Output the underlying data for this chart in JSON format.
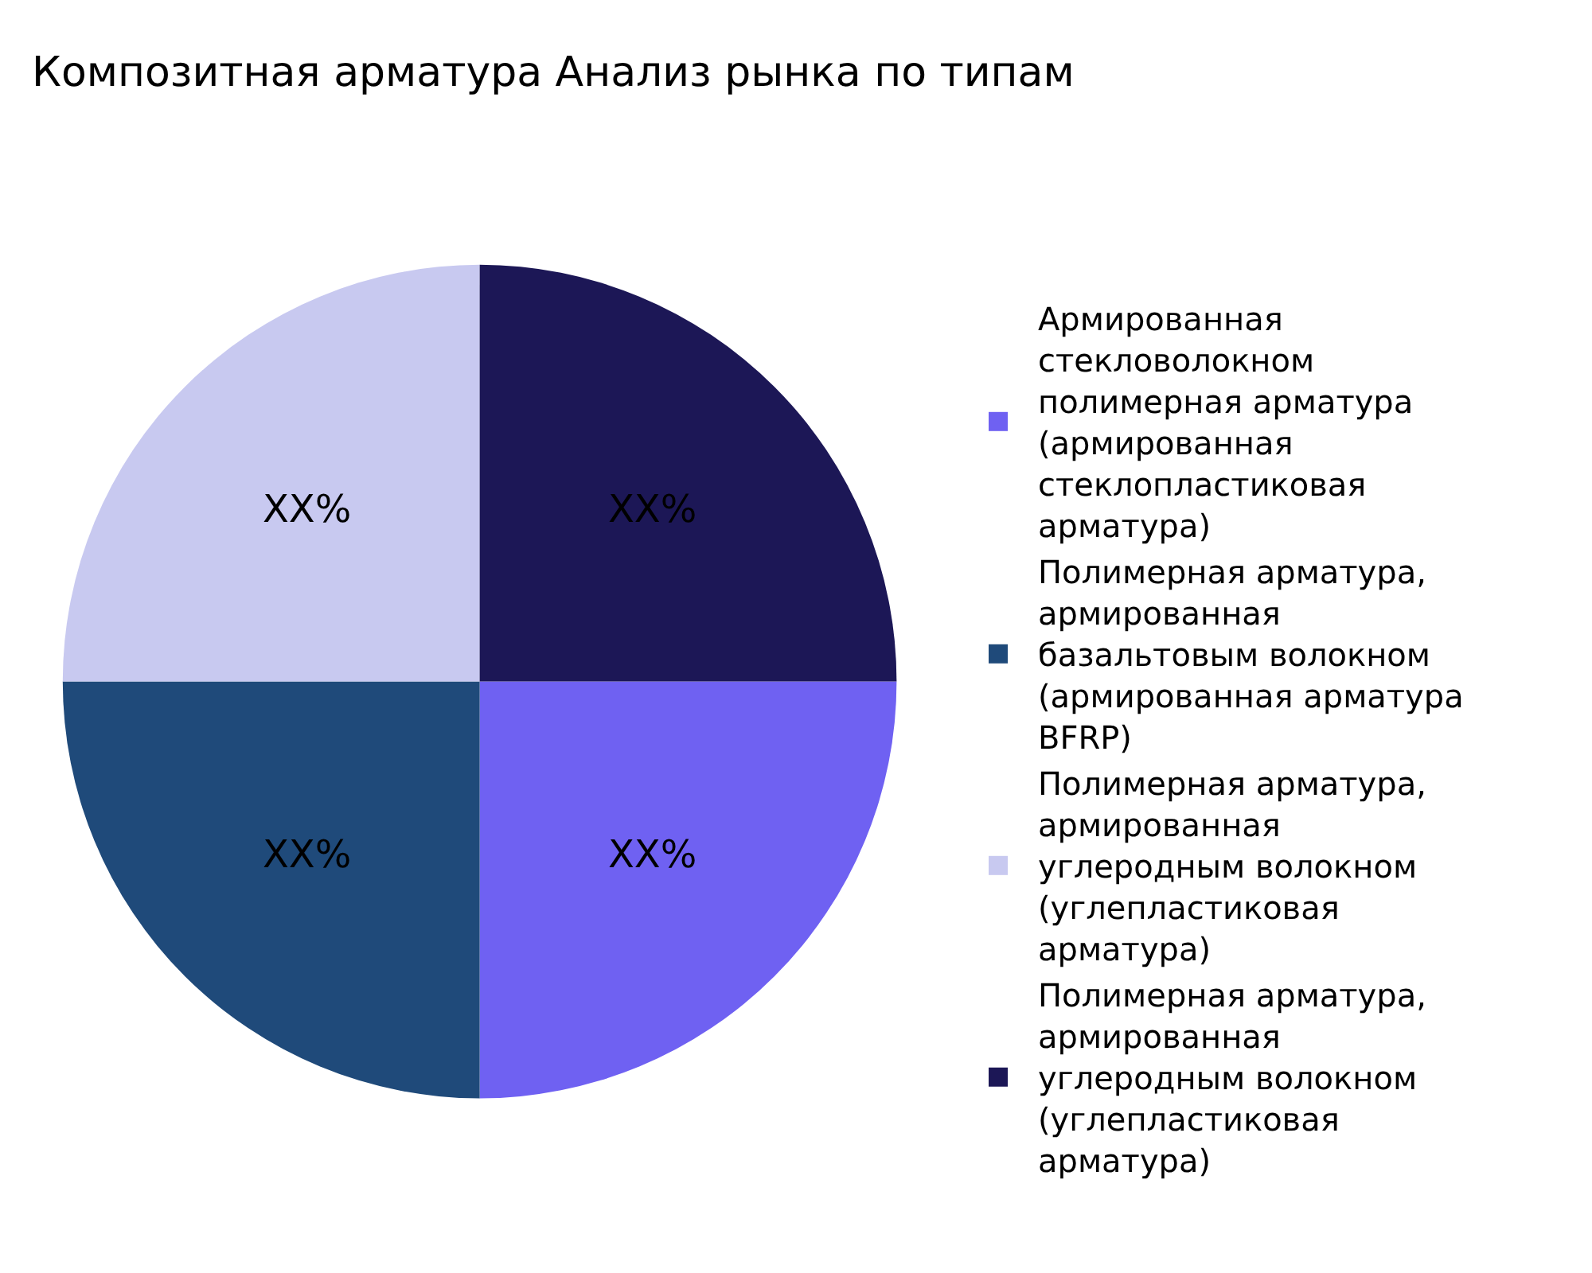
{
  "chart_data": {
    "type": "pie",
    "title": "Композитная арматура Анализ рынка по типам",
    "categories": [
      "Армированная стекловолокном полимерная арматура (армированная стеклопластиковая арматура)",
      "Полимерная арматура, армированная базальтовым волокном (армированная арматура BFRP)",
      "Полимерная арматура, армированная углеродным волокном (углепластиковая арматура)",
      "Полимерная арматура, армированная углеродным волокном (углепластиковая арматура)"
    ],
    "values": [
      25,
      25,
      25,
      25
    ],
    "value_labels": [
      "XX%",
      "XX%",
      "XX%",
      "XX%"
    ],
    "colors": [
      "#6f61f2",
      "#1f4a7a",
      "#c8c9f0",
      "#1c1756"
    ],
    "legend": "right"
  }
}
